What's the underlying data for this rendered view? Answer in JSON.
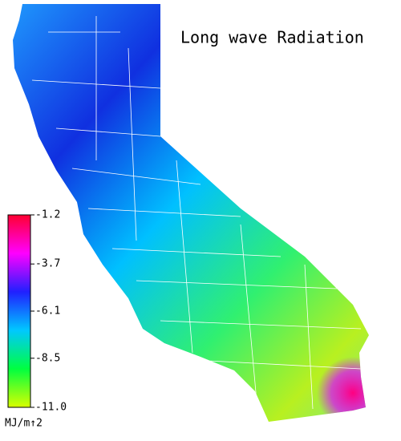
{
  "title": "Long wave Radiation",
  "colorbar": {
    "lim": [
      -11,
      -1.2
    ],
    "ticks": [
      -1.2,
      -3.7,
      -6.1,
      -8.5,
      {
        "value": -11,
        "label": "-11.0"
      }
    ],
    "colors": [
      "#ff0030",
      "#ff00ff",
      "#2020ff",
      "#00c8ff",
      "#00ff40",
      "#d8ff00"
    ],
    "unit": "MJ/m↑2"
  }
}
